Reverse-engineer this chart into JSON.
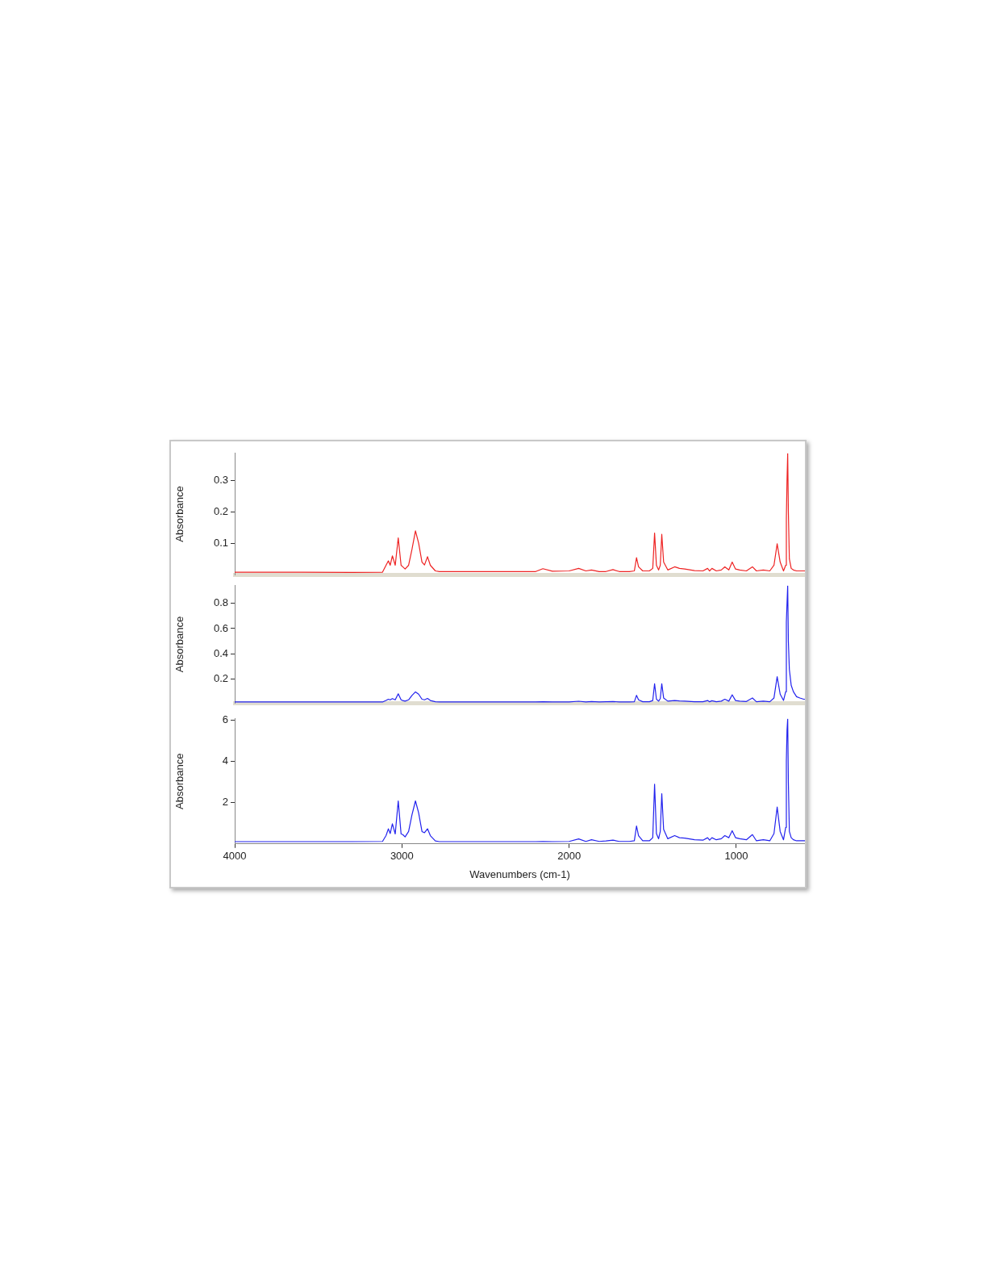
{
  "chart_data": [
    {
      "type": "line",
      "ylabel": "Absorbance",
      "xlim": [
        4000,
        590
      ],
      "xticks": [
        4000,
        3000,
        2000,
        1000
      ],
      "ylim": [
        0,
        0.385
      ],
      "yticks": [
        0.1,
        0.2,
        0.3
      ],
      "tick_labels": "y",
      "grid": false,
      "legend": false,
      "x": [
        4000,
        3600,
        3300,
        3116,
        3095,
        3081,
        3070,
        3057,
        3040,
        3022,
        3005,
        2995,
        2981,
        2960,
        2940,
        2919,
        2900,
        2880,
        2865,
        2847,
        2830,
        2800,
        2776,
        2500,
        2200,
        2157,
        2100,
        2000,
        1943,
        1900,
        1866,
        1820,
        1780,
        1738,
        1700,
        1640,
        1610,
        1597,
        1585,
        1560,
        1520,
        1500,
        1489,
        1478,
        1465,
        1455,
        1446,
        1435,
        1410,
        1369,
        1340,
        1309,
        1250,
        1200,
        1172,
        1160,
        1146,
        1120,
        1090,
        1069,
        1045,
        1025,
        1005,
        980,
        940,
        904,
        880,
        839,
        800,
        775,
        756,
        738,
        718,
        705,
        701,
        697,
        693,
        689,
        683,
        672,
        659,
        640,
        620,
        597,
        590
      ],
      "series": [
        {
          "color": "#ee2222",
          "values": [
            0.008,
            0.008,
            0.007,
            0.008,
            0.03,
            0.044,
            0.03,
            0.06,
            0.03,
            0.117,
            0.03,
            0.025,
            0.018,
            0.03,
            0.08,
            0.139,
            0.1,
            0.04,
            0.031,
            0.057,
            0.03,
            0.012,
            0.01,
            0.01,
            0.01,
            0.019,
            0.011,
            0.012,
            0.02,
            0.012,
            0.015,
            0.01,
            0.01,
            0.016,
            0.01,
            0.01,
            0.012,
            0.054,
            0.025,
            0.012,
            0.012,
            0.02,
            0.132,
            0.03,
            0.015,
            0.03,
            0.128,
            0.04,
            0.015,
            0.025,
            0.02,
            0.018,
            0.013,
            0.012,
            0.02,
            0.012,
            0.02,
            0.012,
            0.015,
            0.025,
            0.015,
            0.04,
            0.018,
            0.015,
            0.012,
            0.025,
            0.012,
            0.015,
            0.012,
            0.03,
            0.098,
            0.04,
            0.012,
            0.03,
            0.176,
            0.3,
            0.385,
            0.2,
            0.05,
            0.02,
            0.015,
            0.012,
            0.012,
            0.012,
            0.012
          ]
        }
      ]
    },
    {
      "type": "line",
      "ylabel": "Absorbance",
      "xlim": [
        4000,
        590
      ],
      "xticks": [
        4000,
        3000,
        2000,
        1000
      ],
      "ylim": [
        0.01,
        0.94
      ],
      "yticks": [
        0.2,
        0.4,
        0.6,
        0.8
      ],
      "tick_labels": "y",
      "grid": false,
      "legend": false,
      "x": [
        4000,
        3600,
        3300,
        3116,
        3095,
        3081,
        3070,
        3057,
        3040,
        3022,
        3005,
        2995,
        2981,
        2960,
        2940,
        2919,
        2900,
        2880,
        2865,
        2847,
        2830,
        2800,
        2776,
        2500,
        2200,
        2157,
        2100,
        2000,
        1943,
        1900,
        1866,
        1820,
        1780,
        1738,
        1700,
        1640,
        1610,
        1597,
        1585,
        1560,
        1520,
        1500,
        1489,
        1478,
        1465,
        1455,
        1446,
        1435,
        1410,
        1369,
        1340,
        1309,
        1250,
        1200,
        1172,
        1160,
        1146,
        1120,
        1090,
        1069,
        1045,
        1025,
        1005,
        980,
        940,
        904,
        880,
        839,
        800,
        775,
        756,
        738,
        718,
        705,
        701,
        697,
        693,
        689,
        683,
        672,
        659,
        640,
        620,
        597,
        590
      ],
      "series": [
        {
          "color": "#2222ee",
          "values": [
            0.018,
            0.018,
            0.018,
            0.018,
            0.03,
            0.04,
            0.035,
            0.045,
            0.035,
            0.083,
            0.035,
            0.03,
            0.025,
            0.035,
            0.07,
            0.098,
            0.08,
            0.04,
            0.035,
            0.046,
            0.03,
            0.02,
            0.018,
            0.018,
            0.018,
            0.02,
            0.018,
            0.019,
            0.024,
            0.018,
            0.022,
            0.018,
            0.02,
            0.022,
            0.018,
            0.018,
            0.02,
            0.071,
            0.035,
            0.02,
            0.02,
            0.03,
            0.163,
            0.04,
            0.025,
            0.045,
            0.163,
            0.05,
            0.025,
            0.03,
            0.027,
            0.025,
            0.02,
            0.02,
            0.03,
            0.02,
            0.028,
            0.02,
            0.025,
            0.04,
            0.025,
            0.075,
            0.03,
            0.025,
            0.022,
            0.05,
            0.02,
            0.025,
            0.02,
            0.05,
            0.218,
            0.08,
            0.03,
            0.1,
            0.65,
            0.8,
            0.94,
            0.5,
            0.275,
            0.15,
            0.1,
            0.06,
            0.05,
            0.04,
            0.04
          ]
        }
      ]
    },
    {
      "type": "line",
      "xlabel": "Wavenumbers (cm-1)",
      "ylabel": "Absorbance",
      "xlim": [
        4000,
        590
      ],
      "xticks": [
        4000,
        3000,
        2000,
        1000
      ],
      "ylim": [
        0,
        6.05
      ],
      "yticks": [
        2,
        4,
        6
      ],
      "grid": false,
      "legend": false,
      "x": [
        4000,
        3600,
        3300,
        3116,
        3095,
        3081,
        3070,
        3057,
        3040,
        3022,
        3005,
        2995,
        2981,
        2960,
        2940,
        2919,
        2900,
        2880,
        2865,
        2847,
        2830,
        2800,
        2776,
        2500,
        2200,
        2157,
        2100,
        2000,
        1943,
        1900,
        1866,
        1820,
        1780,
        1738,
        1700,
        1640,
        1610,
        1597,
        1585,
        1560,
        1520,
        1500,
        1489,
        1478,
        1465,
        1455,
        1446,
        1435,
        1410,
        1369,
        1340,
        1309,
        1250,
        1200,
        1172,
        1160,
        1146,
        1120,
        1090,
        1069,
        1045,
        1025,
        1005,
        980,
        940,
        904,
        880,
        839,
        800,
        775,
        756,
        738,
        718,
        705,
        701,
        697,
        693,
        689,
        683,
        672,
        659,
        640,
        620,
        597,
        590
      ],
      "series": [
        {
          "color": "#2222ee",
          "values": [
            0.11,
            0.11,
            0.11,
            0.12,
            0.4,
            0.73,
            0.5,
            0.97,
            0.48,
            2.08,
            0.48,
            0.45,
            0.34,
            0.6,
            1.4,
            2.08,
            1.5,
            0.6,
            0.54,
            0.73,
            0.4,
            0.14,
            0.11,
            0.11,
            0.11,
            0.12,
            0.11,
            0.12,
            0.24,
            0.12,
            0.2,
            0.12,
            0.14,
            0.18,
            0.12,
            0.12,
            0.15,
            0.87,
            0.4,
            0.15,
            0.15,
            0.3,
            2.89,
            0.5,
            0.25,
            0.6,
            2.43,
            0.7,
            0.25,
            0.4,
            0.3,
            0.28,
            0.2,
            0.18,
            0.3,
            0.18,
            0.3,
            0.2,
            0.25,
            0.4,
            0.3,
            0.64,
            0.3,
            0.25,
            0.2,
            0.45,
            0.15,
            0.2,
            0.15,
            0.5,
            1.78,
            0.6,
            0.2,
            0.8,
            4,
            5.5,
            6.05,
            3,
            0.6,
            0.3,
            0.2,
            0.15,
            0.15,
            0.15,
            0.15
          ]
        }
      ]
    }
  ]
}
